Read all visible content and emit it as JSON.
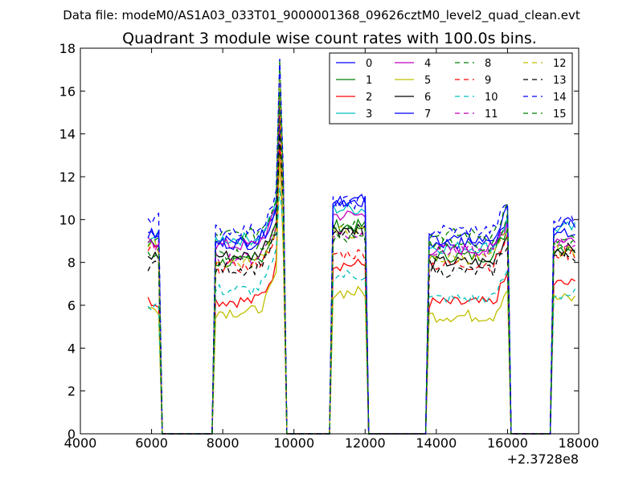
{
  "header": {
    "file_label": "Data file: modeM0/AS1A03_033T01_9000001368_09626cztM0_level2_quad_clean.evt"
  },
  "chart_data": {
    "type": "line",
    "title": "Quadrant 3 module wise count rates with 100.0s bins.",
    "xlabel": "",
    "ylabel": "",
    "x_offset_label": "+2.3728e8",
    "xlim": [
      4000,
      18000
    ],
    "ylim": [
      0,
      18
    ],
    "x_ticks": [
      4000,
      6000,
      8000,
      10000,
      12000,
      14000,
      16000,
      18000
    ],
    "x_tick_labels": [
      "4000",
      "6000",
      "8000",
      "10000",
      "12000",
      "14000",
      "16000",
      "18000"
    ],
    "y_ticks": [
      0,
      2,
      4,
      6,
      8,
      10,
      12,
      14,
      16,
      18
    ],
    "y_tick_labels": [
      "0",
      "2",
      "4",
      "6",
      "8",
      "10",
      "12",
      "14",
      "16",
      "18"
    ],
    "grid": false,
    "legend_position": "top-right",
    "legend_columns": 4,
    "segments": [
      {
        "start": 5900,
        "end": 6200,
        "zero_after": 6300
      },
      {
        "start": 7800,
        "end": 9700,
        "zero_after": 9800
      },
      {
        "start": 11100,
        "end": 12000,
        "zero_after": 12100
      },
      {
        "start": 13800,
        "end": 16000,
        "zero_after": 16100
      },
      {
        "start": 17300,
        "end": 17900,
        "zero_after": null
      }
    ],
    "zero_ranges": [
      [
        6300,
        7700
      ],
      [
        9800,
        11000
      ],
      [
        12100,
        13700
      ],
      [
        16100,
        17200
      ]
    ],
    "series": [
      {
        "name": "0",
        "color": "#0000ff",
        "dashed": false,
        "levels": [
          9.4,
          9.0,
          10.8,
          8.9,
          9.3
        ]
      },
      {
        "name": "1",
        "color": "#008000",
        "dashed": false,
        "levels": [
          8.8,
          8.0,
          9.7,
          8.3,
          8.7
        ]
      },
      {
        "name": "2",
        "color": "#ff0000",
        "dashed": false,
        "levels": [
          6.2,
          6.2,
          7.9,
          6.1,
          7.0
        ]
      },
      {
        "name": "3",
        "color": "#00bfbf",
        "dashed": false,
        "levels": [
          9.2,
          9.1,
          10.5,
          8.7,
          9.6
        ]
      },
      {
        "name": "4",
        "color": "#bf00bf",
        "dashed": false,
        "levels": [
          9.0,
          8.8,
          10.2,
          8.6,
          9.1
        ]
      },
      {
        "name": "5",
        "color": "#bfbf00",
        "dashed": false,
        "levels": [
          5.8,
          5.7,
          6.6,
          5.5,
          6.3
        ]
      },
      {
        "name": "6",
        "color": "#000000",
        "dashed": false,
        "levels": [
          8.3,
          8.3,
          9.6,
          8.0,
          8.6
        ]
      },
      {
        "name": "7",
        "color": "#0000ff",
        "dashed": false,
        "levels": [
          9.3,
          8.9,
          10.9,
          9.1,
          9.8
        ]
      },
      {
        "name": "8",
        "color": "#008000",
        "dashed": true,
        "levels": [
          9.0,
          9.3,
          9.8,
          9.3,
          9.0
        ]
      },
      {
        "name": "9",
        "color": "#ff0000",
        "dashed": true,
        "levels": [
          8.6,
          7.8,
          8.4,
          7.9,
          8.4
        ]
      },
      {
        "name": "10",
        "color": "#00bfbf",
        "dashed": true,
        "levels": [
          6.0,
          6.7,
          7.4,
          6.3,
          6.5
        ]
      },
      {
        "name": "11",
        "color": "#bf00bf",
        "dashed": true,
        "levels": [
          8.8,
          8.2,
          9.3,
          8.5,
          8.9
        ]
      },
      {
        "name": "12",
        "color": "#bfbf00",
        "dashed": true,
        "levels": [
          8.7,
          8.0,
          9.4,
          8.2,
          8.5
        ]
      },
      {
        "name": "13",
        "color": "#000000",
        "dashed": true,
        "levels": [
          7.9,
          7.7,
          9.3,
          7.6,
          8.3
        ]
      },
      {
        "name": "14",
        "color": "#0000ff",
        "dashed": true,
        "levels": [
          10.1,
          9.5,
          10.8,
          9.5,
          9.9
        ]
      },
      {
        "name": "15",
        "color": "#008000",
        "dashed": true,
        "levels": [
          8.5,
          8.4,
          9.1,
          8.8,
          8.8
        ]
      }
    ],
    "peaks": {
      "x": 9600,
      "values": [
        15.0,
        15.5,
        13.5,
        16.0,
        15.8,
        13.0,
        15.3,
        14.5,
        17.5,
        14.8,
        11.5,
        15.5,
        16.5,
        14.0,
        17.5,
        16.0
      ]
    }
  }
}
